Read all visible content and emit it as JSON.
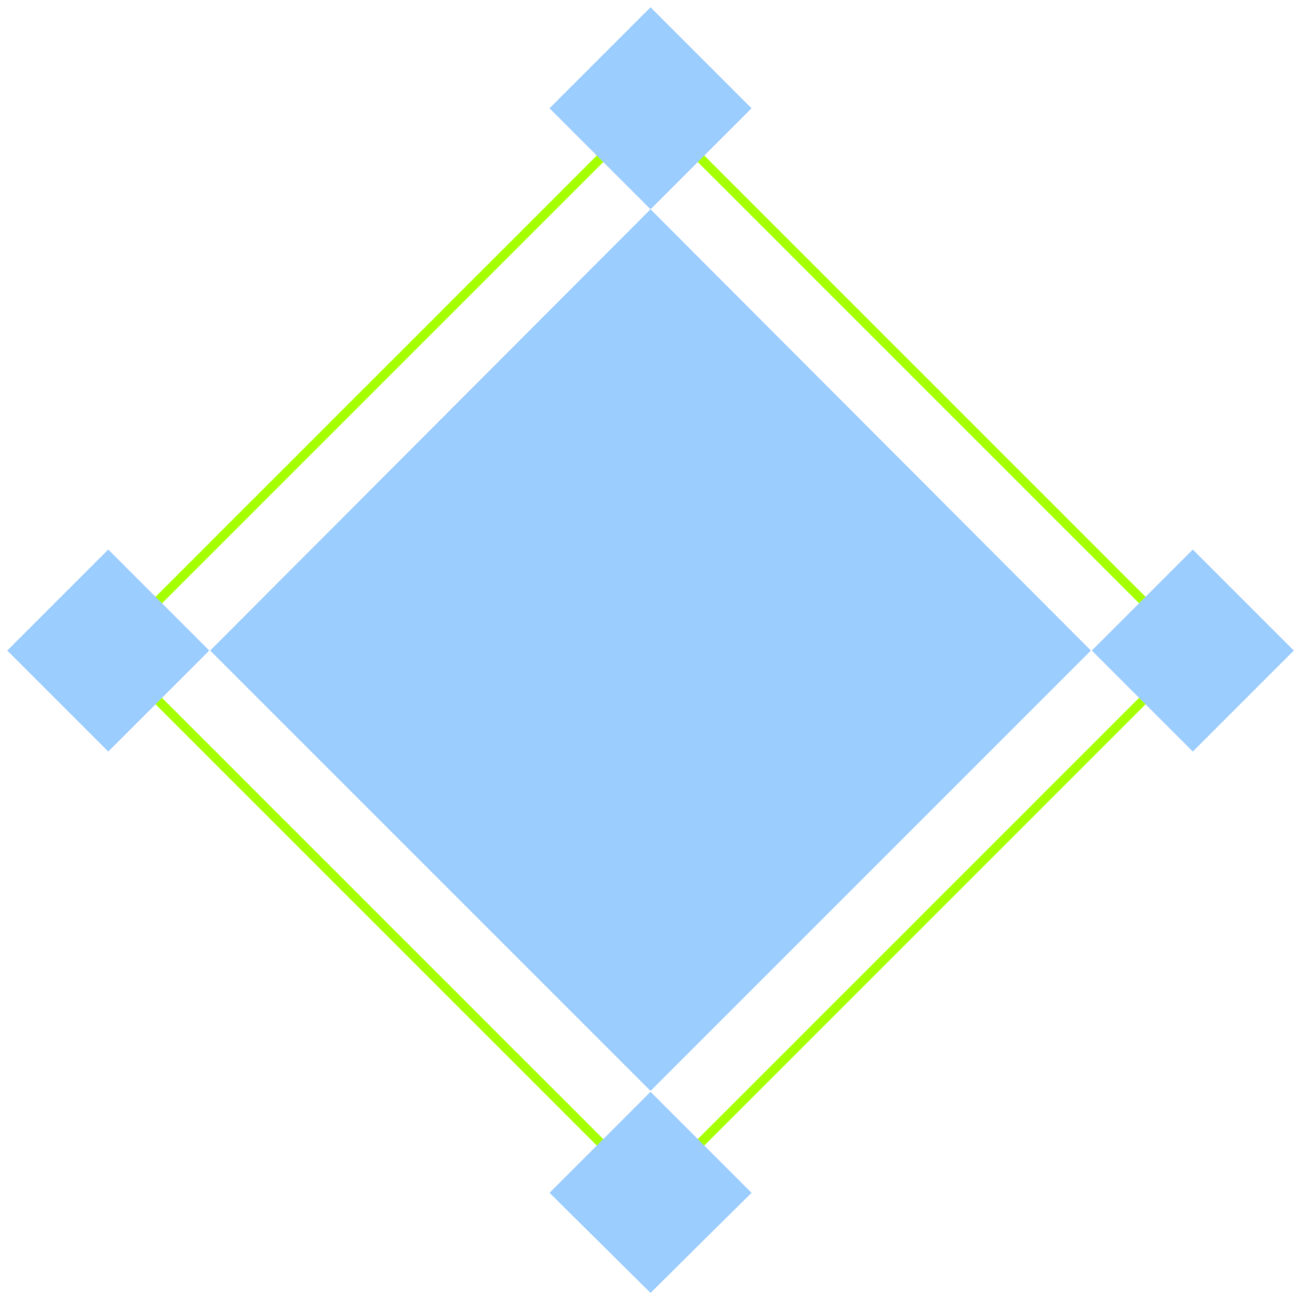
{
  "diagram": {
    "shape": "rotated-square-with-corner-handles",
    "colors": {
      "background": "#ffffff",
      "fill": "#9ccdff",
      "outline": "#a6ff00"
    },
    "nodes": [
      {
        "id": "center",
        "kind": "large-diamond"
      },
      {
        "id": "top",
        "kind": "corner-handle"
      },
      {
        "id": "right",
        "kind": "corner-handle"
      },
      {
        "id": "bottom",
        "kind": "corner-handle"
      },
      {
        "id": "left",
        "kind": "corner-handle"
      }
    ],
    "edges": [
      {
        "from": "left",
        "to": "top"
      },
      {
        "from": "top",
        "to": "right"
      },
      {
        "from": "right",
        "to": "bottom"
      },
      {
        "from": "bottom",
        "to": "left"
      }
    ]
  }
}
